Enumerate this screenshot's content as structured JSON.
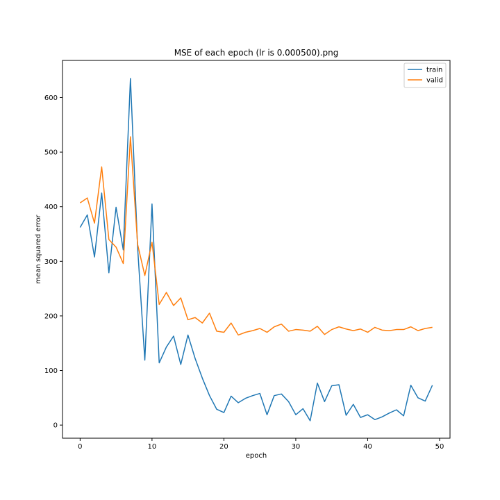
{
  "chart_data": {
    "type": "line",
    "title": "MSE of each epoch (lr is 0.000500).png",
    "xlabel": "epoch",
    "ylabel": "mean squared error",
    "xlim": [
      -2.45,
      51.45
    ],
    "ylim": [
      -24,
      668
    ],
    "xticks": [
      0,
      10,
      20,
      30,
      40,
      50
    ],
    "yticks": [
      0,
      100,
      200,
      300,
      400,
      500,
      600
    ],
    "grid": false,
    "legend_position": "top-right",
    "x": [
      0,
      1,
      2,
      3,
      4,
      5,
      6,
      7,
      8,
      9,
      10,
      11,
      12,
      13,
      14,
      15,
      16,
      17,
      18,
      19,
      20,
      21,
      22,
      23,
      24,
      25,
      26,
      27,
      28,
      29,
      30,
      31,
      32,
      33,
      34,
      35,
      36,
      37,
      38,
      39,
      40,
      41,
      42,
      43,
      44,
      45,
      46,
      47,
      48,
      49
    ],
    "series": [
      {
        "name": "train",
        "color": "#1f77b4",
        "values": [
          362,
          385,
          308,
          425,
          279,
          399,
          321,
          635,
          325,
          119,
          405,
          114,
          143,
          163,
          111,
          165,
          122,
          86,
          54,
          29,
          23,
          53,
          41,
          49,
          54,
          58,
          19,
          54,
          57,
          43,
          19,
          30,
          8,
          77,
          43,
          72,
          74,
          18,
          38,
          14,
          19,
          10,
          15,
          22,
          28,
          17,
          73,
          50,
          44,
          73
        ]
      },
      {
        "name": "valid",
        "color": "#ff7f0e",
        "values": [
          407,
          416,
          370,
          473,
          340,
          326,
          296,
          528,
          331,
          274,
          335,
          221,
          243,
          219,
          233,
          193,
          197,
          187,
          205,
          172,
          170,
          187,
          165,
          170,
          173,
          177,
          170,
          180,
          185,
          172,
          175,
          174,
          172,
          181,
          166,
          175,
          180,
          176,
          173,
          176,
          170,
          179,
          174,
          173,
          175,
          175,
          180,
          173,
          177,
          179
        ]
      }
    ]
  }
}
